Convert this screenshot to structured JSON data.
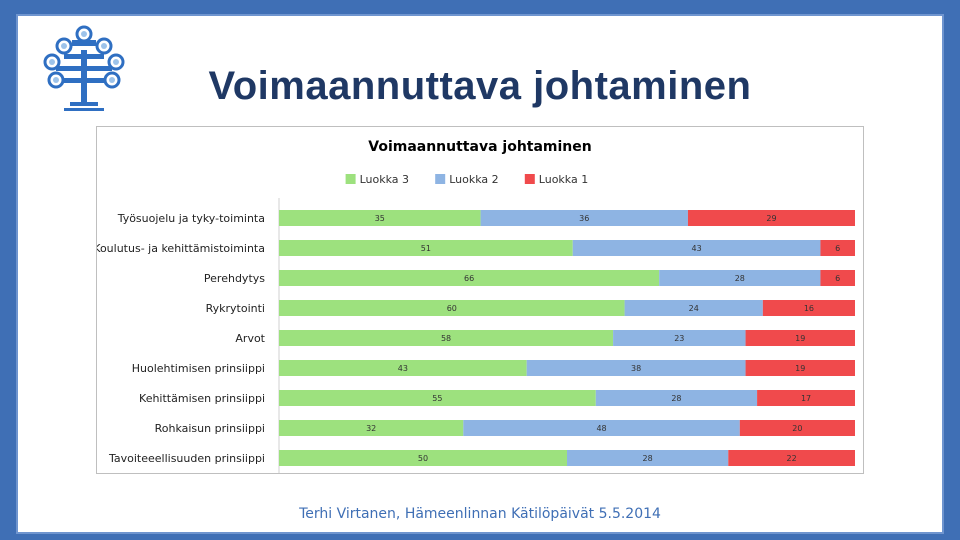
{
  "slide": {
    "title": "Voimaannuttava johtaminen",
    "footer": "Terhi Virtanen, Hämeenlinnan Kätilöpäivät 5.5.2014"
  },
  "colors": {
    "background": "#3f6fb5",
    "title": "#1f3864",
    "Luokka 3": "#9de17e",
    "Luokka 2": "#8eb4e3",
    "Luokka 1": "#f04a4c"
  },
  "logo": {
    "icon": "tree-logo-icon"
  },
  "chart_data": {
    "type": "bar",
    "orientation": "horizontal",
    "stacked": true,
    "title": "Voimaannuttava johtaminen",
    "legend_position": "top",
    "grid": false,
    "xlim": [
      0,
      100
    ],
    "categories": [
      "Työsuojelu ja tyky-toiminta",
      "Koulutus- ja kehittämistoiminta",
      "Perehdytys",
      "Rykrytointi",
      "Arvot",
      "Huolehtimisen prinsiippi",
      "Kehittämisen prinsiippi",
      "Rohkaisun prinsiippi",
      "Tavoiteeellisuuden prinsiippi"
    ],
    "series": [
      {
        "name": "Luokka 3",
        "color": "#9de17e",
        "values": [
          35,
          51,
          66,
          60,
          58,
          43,
          55,
          32,
          50
        ]
      },
      {
        "name": "Luokka 2",
        "color": "#8eb4e3",
        "values": [
          36,
          43,
          28,
          24,
          23,
          38,
          28,
          48,
          28
        ]
      },
      {
        "name": "Luokka 1",
        "color": "#f04a4c",
        "values": [
          29,
          6,
          6,
          16,
          19,
          19,
          17,
          20,
          22
        ]
      }
    ]
  }
}
